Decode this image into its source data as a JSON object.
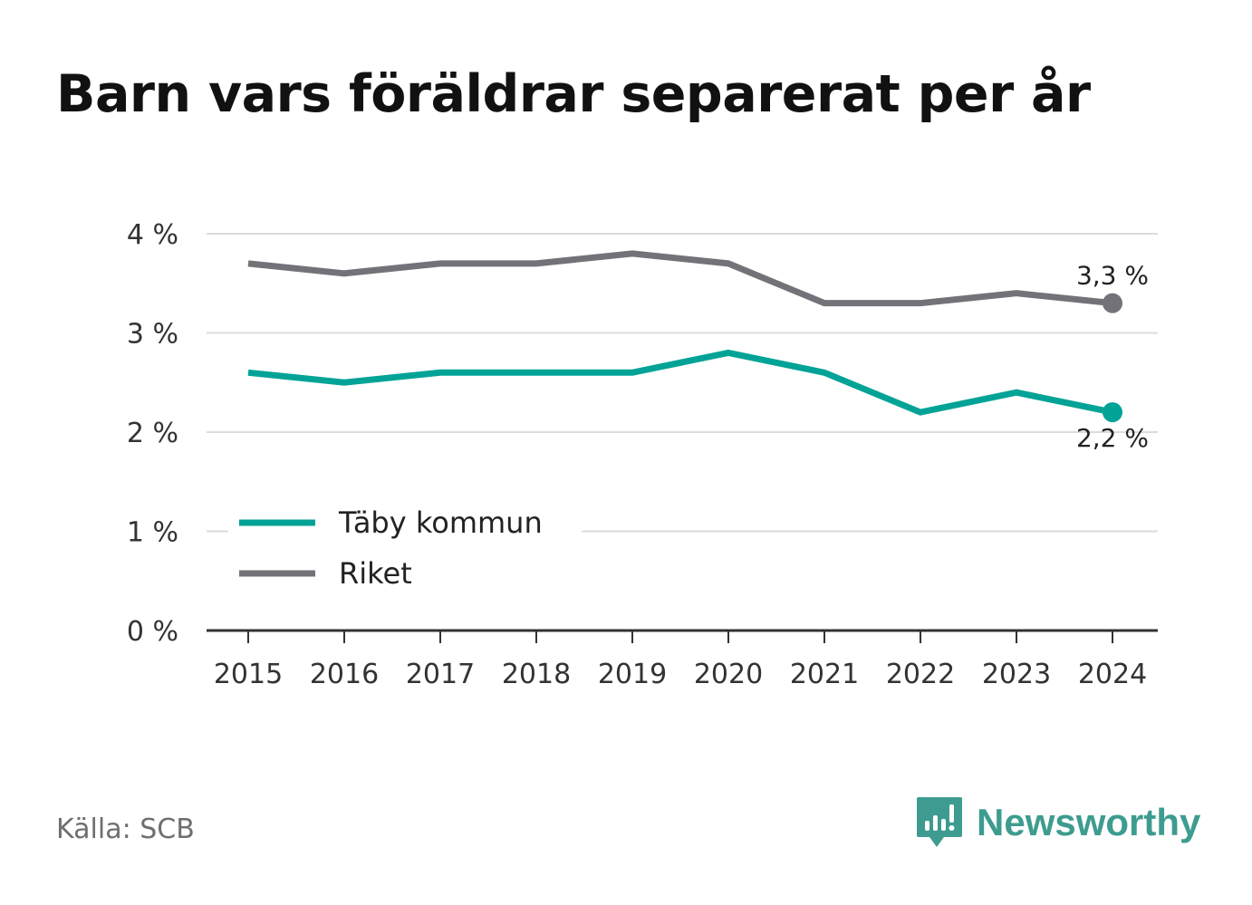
{
  "title": "Barn vars föräldrar separerat per år",
  "source": "Källa: SCB",
  "brand": {
    "name": "Newsworthy",
    "icon": "newsworthy-logo-icon",
    "color": "#3d9c8f"
  },
  "chart_data": {
    "type": "line",
    "title": "Barn vars föräldrar separerat per år",
    "xlabel": "",
    "ylabel": "",
    "categories": [
      "2015",
      "2016",
      "2017",
      "2018",
      "2019",
      "2020",
      "2021",
      "2022",
      "2023",
      "2024"
    ],
    "ylim": [
      0,
      4
    ],
    "yticks": [
      0,
      1,
      2,
      3,
      4
    ],
    "ytick_labels": [
      "0 %",
      "1 %",
      "2 %",
      "3 %",
      "4 %"
    ],
    "grid": true,
    "legend_position": "lower-left",
    "series": [
      {
        "name": "Täby kommun",
        "color": "#00a396",
        "values": [
          2.6,
          2.5,
          2.6,
          2.6,
          2.6,
          2.8,
          2.6,
          2.2,
          2.4,
          2.2
        ],
        "end_label": "2,2 %"
      },
      {
        "name": "Riket",
        "color": "#737279",
        "values": [
          3.7,
          3.6,
          3.7,
          3.7,
          3.8,
          3.7,
          3.3,
          3.3,
          3.4,
          3.3
        ],
        "end_label": "3,3 %"
      }
    ]
  }
}
